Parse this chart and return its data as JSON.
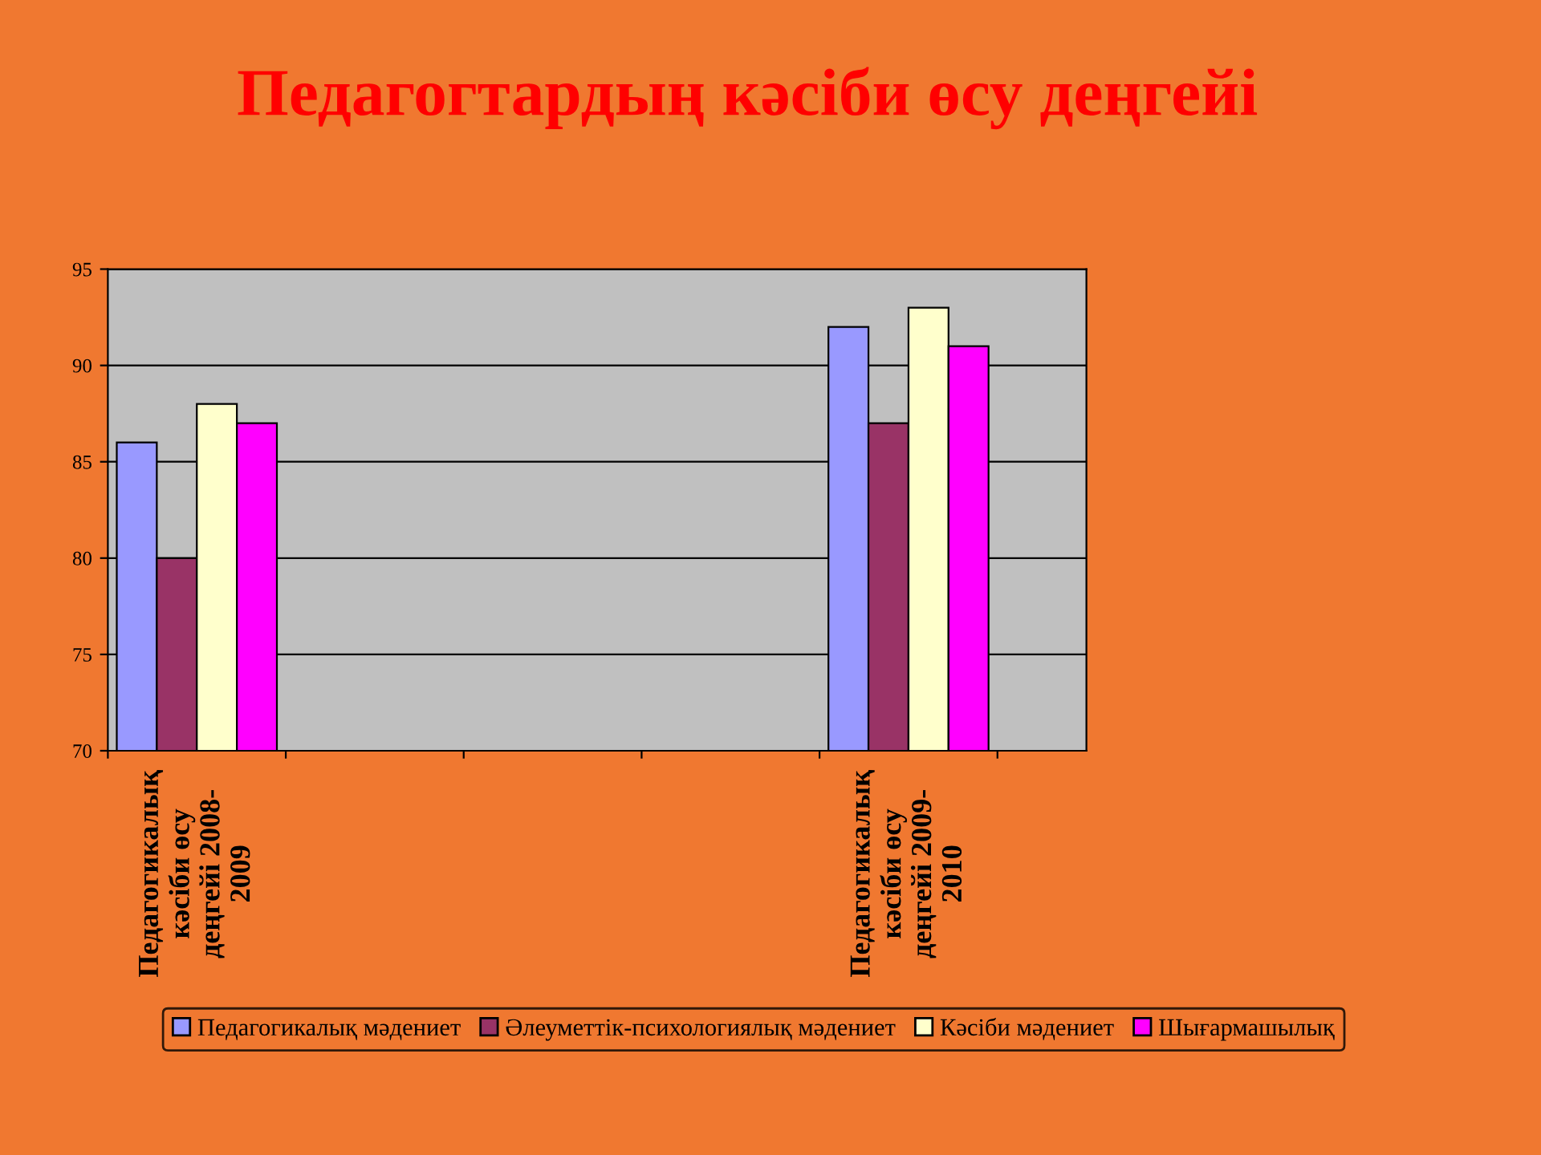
{
  "chart_data": {
    "type": "bar",
    "title": "Педагогтардың кәсіби өсу деңгейі",
    "categories": [
      "Педагогикалық\nкәсіби өсу\nдеңгейі 2008-\n2009",
      null,
      null,
      null,
      "Педагогикалық\nкәсіби өсу\nдеңгейі 2009-\n2010"
    ],
    "series": [
      {
        "name": "Педагогикалық мәдениет",
        "color": "#9999ff",
        "values": [
          86,
          null,
          null,
          null,
          92
        ]
      },
      {
        "name": "Әлеуметтік-психологиялық мәдениет",
        "color": "#993366",
        "values": [
          80,
          null,
          null,
          null,
          87
        ]
      },
      {
        "name": "Кәсіби мәдениет",
        "color": "#ffffcc",
        "values": [
          88,
          null,
          null,
          null,
          93
        ]
      },
      {
        "name": "Шығармашылық",
        "color": "#ff00ff",
        "values": [
          87,
          null,
          null,
          null,
          91
        ]
      }
    ],
    "ylim": [
      70,
      95
    ],
    "yticks": [
      70,
      75,
      80,
      85,
      90,
      95
    ],
    "grid": "y",
    "legend": "bottom"
  }
}
